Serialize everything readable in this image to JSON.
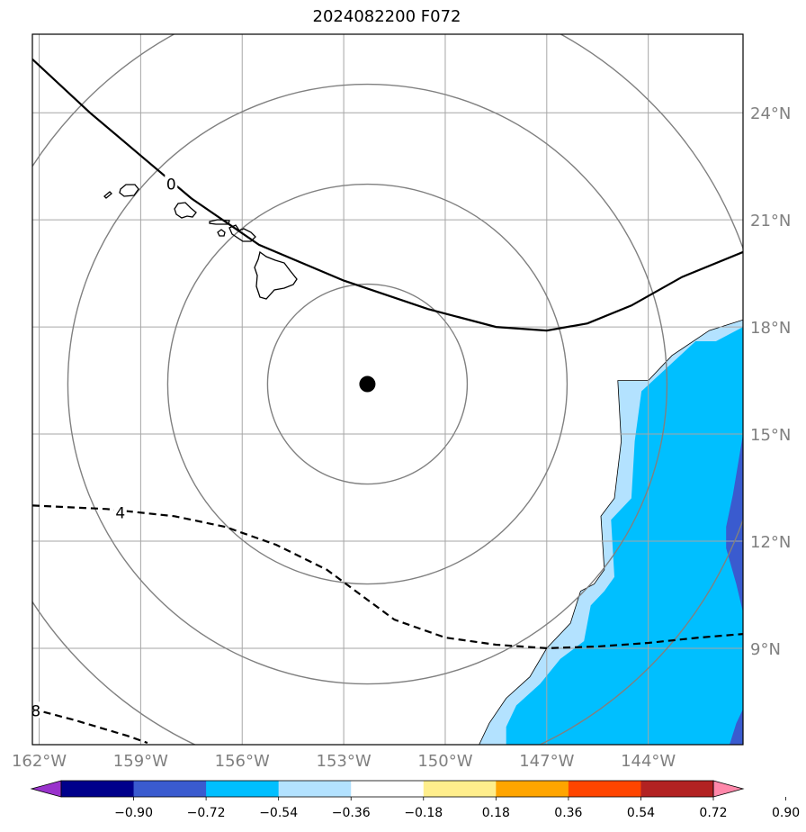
{
  "title": "2024082200 F072",
  "chart_data": {
    "type": "map",
    "title": "2024082200 F072",
    "lon_range": [
      -162.2,
      -141.2
    ],
    "lat_range": [
      6.3,
      26.2
    ],
    "lon_ticks": [
      {
        "value": -162,
        "label": "162°W"
      },
      {
        "value": -159,
        "label": "159°W"
      },
      {
        "value": -156,
        "label": "156°W"
      },
      {
        "value": -153,
        "label": "153°W"
      },
      {
        "value": -150,
        "label": "150°W"
      },
      {
        "value": -147,
        "label": "147°W"
      },
      {
        "value": -144,
        "label": "144°W"
      }
    ],
    "lat_ticks": [
      {
        "value": 24,
        "label": "24°N"
      },
      {
        "value": 21,
        "label": "21°N"
      },
      {
        "value": 18,
        "label": "18°N"
      },
      {
        "value": 15,
        "label": "15°N"
      },
      {
        "value": 12,
        "label": "12°N"
      },
      {
        "value": 9,
        "label": "9°N"
      }
    ],
    "grid": true,
    "center_marker": {
      "lon": -152.3,
      "lat": 16.4
    },
    "range_rings_count": 4,
    "contours": [
      {
        "label": "0",
        "style": "solid",
        "points": [
          [
            -162.2,
            25.5
          ],
          [
            -160.5,
            24.0
          ],
          [
            -159.0,
            22.8
          ],
          [
            -157.5,
            21.6
          ],
          [
            -155.5,
            20.3
          ],
          [
            -153.0,
            19.3
          ],
          [
            -150.5,
            18.5
          ],
          [
            -148.5,
            18.0
          ],
          [
            -147.0,
            17.9
          ],
          [
            -145.8,
            18.1
          ],
          [
            -144.5,
            18.6
          ],
          [
            -143.0,
            19.4
          ],
          [
            -141.2,
            20.1
          ]
        ],
        "label_at": [
          -158.1,
          22.0
        ]
      },
      {
        "label": "4",
        "style": "dashed",
        "points": [
          [
            -162.2,
            13.0
          ],
          [
            -160.0,
            12.9
          ],
          [
            -158.0,
            12.7
          ],
          [
            -156.5,
            12.4
          ],
          [
            -155.0,
            11.9
          ],
          [
            -153.5,
            11.2
          ],
          [
            -152.5,
            10.5
          ],
          [
            -151.5,
            9.8
          ],
          [
            -150.0,
            9.3
          ],
          [
            -148.5,
            9.1
          ],
          [
            -147.0,
            9.0
          ],
          [
            -145.5,
            9.05
          ],
          [
            -144.0,
            9.15
          ],
          [
            -142.5,
            9.3
          ],
          [
            -141.2,
            9.4
          ]
        ],
        "label_at": [
          -159.6,
          12.8
        ]
      },
      {
        "label": "8",
        "style": "dashed",
        "points": [
          [
            -162.2,
            7.3
          ],
          [
            -161.0,
            7.0
          ],
          [
            -159.4,
            6.55
          ],
          [
            -158.8,
            6.35
          ]
        ],
        "label_at": [
          -162.1,
          7.25
        ]
      }
    ],
    "shaded_regions": [
      {
        "level": "-0.36 to -0.18",
        "color": "#B3E2FF",
        "points": [
          [
            -141.2,
            18.2
          ],
          [
            -142.2,
            17.9
          ],
          [
            -143.3,
            17.2
          ],
          [
            -144.0,
            16.5
          ],
          [
            -144.9,
            16.5
          ],
          [
            -144.8,
            14.8
          ],
          [
            -145.0,
            13.2
          ],
          [
            -145.4,
            12.7
          ],
          [
            -145.3,
            11.2
          ],
          [
            -145.6,
            10.8
          ],
          [
            -146.0,
            10.6
          ],
          [
            -146.3,
            9.7
          ],
          [
            -147.0,
            9.0
          ],
          [
            -147.5,
            8.2
          ],
          [
            -148.2,
            7.6
          ],
          [
            -148.7,
            6.9
          ],
          [
            -149.0,
            6.3
          ],
          [
            -141.2,
            6.3
          ]
        ]
      },
      {
        "level": "-0.54 to -0.36",
        "color": "#00BFFF",
        "points": [
          [
            -141.2,
            18.0
          ],
          [
            -142.0,
            17.6
          ],
          [
            -142.6,
            17.6
          ],
          [
            -143.4,
            16.9
          ],
          [
            -144.2,
            16.2
          ],
          [
            -144.4,
            14.8
          ],
          [
            -144.5,
            13.2
          ],
          [
            -145.1,
            12.6
          ],
          [
            -145.0,
            11.0
          ],
          [
            -145.3,
            10.6
          ],
          [
            -145.7,
            10.2
          ],
          [
            -145.9,
            9.2
          ],
          [
            -146.6,
            8.7
          ],
          [
            -147.2,
            8.0
          ],
          [
            -147.9,
            7.4
          ],
          [
            -148.2,
            6.8
          ],
          [
            -148.2,
            6.3
          ],
          [
            -141.2,
            6.3
          ]
        ]
      },
      {
        "level": "-0.72 to -0.54",
        "color": "#3A5BCF",
        "points": [
          [
            -141.2,
            15.0
          ],
          [
            -141.5,
            13.3
          ],
          [
            -141.7,
            12.4
          ],
          [
            -141.7,
            11.8
          ],
          [
            -141.4,
            10.8
          ],
          [
            -141.2,
            10.0
          ]
        ]
      },
      {
        "level": "-0.72 to -0.54",
        "color": "#3A5BCF",
        "points": [
          [
            -141.2,
            7.3
          ],
          [
            -141.4,
            6.9
          ],
          [
            -141.6,
            6.3
          ],
          [
            -141.2,
            6.3
          ]
        ]
      }
    ],
    "colorbar": {
      "ticks": [
        "−0.90",
        "−0.72",
        "−0.54",
        "−0.36",
        "−0.18",
        "0.18",
        "0.36",
        "0.54",
        "0.72",
        "0.90"
      ],
      "colors": [
        "#9932CC",
        "#00008B",
        "#3A5BCF",
        "#00BFFF",
        "#B3E2FF",
        "#FFFFFF",
        "#FFEE8C",
        "#FFA500",
        "#FF4500",
        "#B22222",
        "#FF88AA"
      ]
    }
  }
}
